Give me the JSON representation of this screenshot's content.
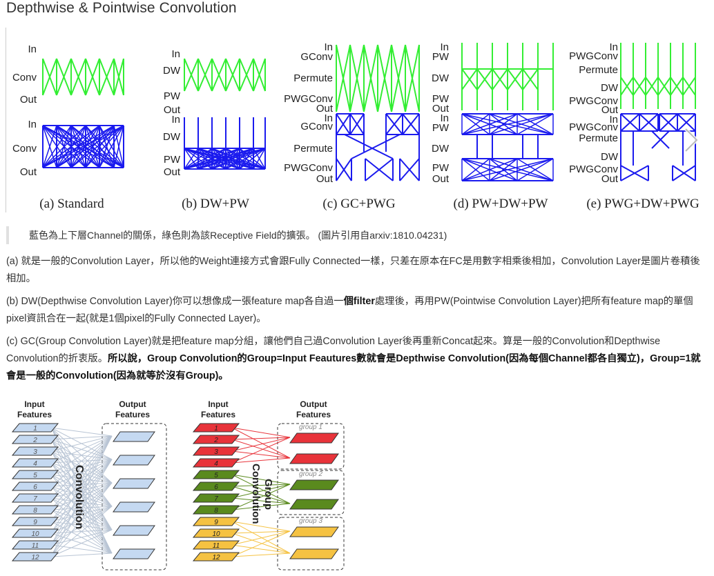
{
  "page": {
    "title": "Depthwise & Pointwise Convolution"
  },
  "figure1": {
    "panels": [
      {
        "caption": "(a) Standard",
        "labels": [
          "In",
          "Conv",
          "Out",
          "In",
          "Conv",
          "Out"
        ]
      },
      {
        "caption": "(b) DW+PW",
        "labels": [
          "In",
          "DW",
          "PW",
          "Out",
          "In",
          "DW",
          "PW",
          "Out"
        ]
      },
      {
        "caption": "(c) GC+PWG",
        "labels": [
          "In",
          "GConv",
          "Permute",
          "PWGConv",
          "Out",
          "In",
          "GConv",
          "Permute",
          "PWGConv",
          "Out"
        ]
      },
      {
        "caption": "(d) PW+DW+PW",
        "labels": [
          "In",
          "PW",
          "DW",
          "PW",
          "Out",
          "In",
          "PW",
          "DW",
          "PW",
          "Out"
        ]
      },
      {
        "caption": "(e) PWG+DW+PWG",
        "labels": [
          "In",
          "PWGConv",
          "Permute",
          "DW",
          "PWGConv",
          "Out",
          "In",
          "PWGConv",
          "Permute",
          "DW",
          "PWGConv",
          "Out"
        ]
      }
    ],
    "colors": {
      "green": "#33ee33",
      "blue": "#1a1aee"
    }
  },
  "quote": "藍色為上下層Channel的關係，綠色則為該Receptive Field的擴張。 (圖片引用自arxiv:1810.04231)",
  "paragraphs": {
    "p1": "(a) 就是一般的Convolution Layer，所以他的Weight連接方式會跟Fully Connected一樣，只差在原本在FC是用數字相乘後相加，Convolution Layer是圖片卷積後相加。",
    "p2_a": "(b) DW(Depthwise Convolution Layer)你可以想像成一張feature map各自過一",
    "p2_bold": "個filter",
    "p2_b": "處理後，再用PW(Pointwise Convolution Layer)把所有feature map的單個pixel資訊合在一起(就是1個pixel的Fully Connected Layer)。",
    "p3_a": "(c) GC(Group Convolution Layer)就是把feature map分組，讓他們自己過Convolution Layer後再重新Concat起來。算是一般的Convolution和Depthwise Convolution的折衷版。",
    "p3_bold": "所以說，Group Convolution的Group=Input Feautures數就會是Depthwise Convolution(因為每個Channel都各自獨立)，Group=1就會是一般的Convolution(因為就等於沒有Group)。"
  },
  "figure2": {
    "left": {
      "input_heading": [
        "Input",
        "Features"
      ],
      "output_heading": [
        "Output",
        "Features"
      ],
      "input_numbers": [
        "1",
        "2",
        "3",
        "4",
        "5",
        "6",
        "7",
        "8",
        "9",
        "10",
        "11",
        "12"
      ],
      "center_label": "Convolution",
      "color": "#c5d9f1"
    },
    "right": {
      "input_heading": [
        "Input",
        "Features"
      ],
      "output_heading": [
        "Output",
        "Features"
      ],
      "input_numbers": [
        "1",
        "2",
        "3",
        "4",
        "5",
        "6",
        "7",
        "8",
        "9",
        "10",
        "11",
        "12"
      ],
      "center_label": [
        "Group",
        "Convolution"
      ],
      "groups": [
        "group 1",
        "group 2",
        "group 3"
      ],
      "colors": [
        "#e8333a",
        "#5a8a1e",
        "#f5c242"
      ]
    }
  }
}
